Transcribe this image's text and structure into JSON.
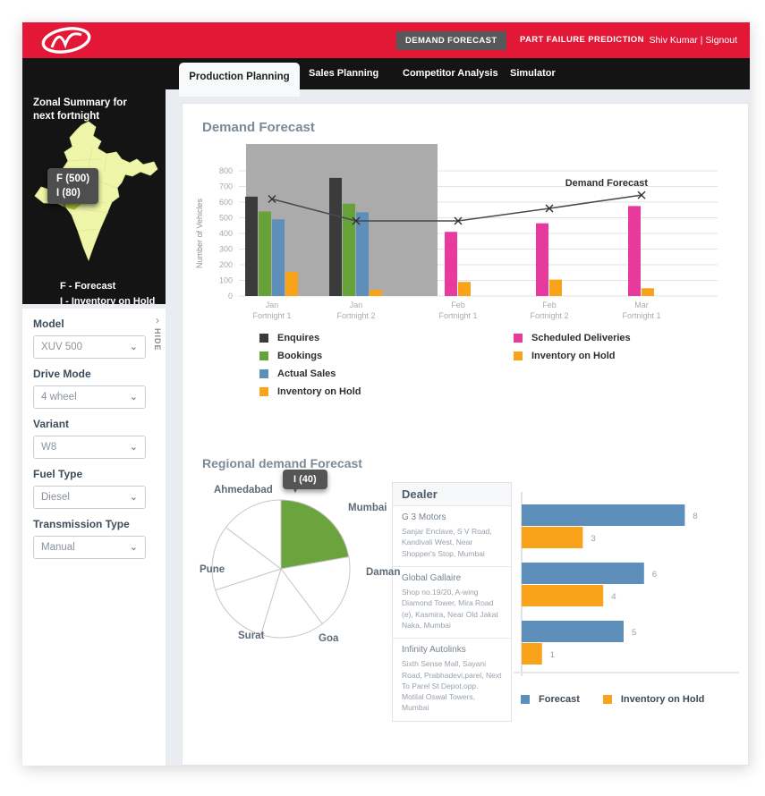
{
  "icons": {
    "chevron_down": "⌄",
    "chevron_right": "›"
  },
  "header": {
    "nav_buttons": [
      {
        "label": "DEMAND FORECAST",
        "active": true
      },
      {
        "label": "PART FAILURE PREDICTION",
        "active": false
      }
    ],
    "user": "Shiv Kumar",
    "separator": "|",
    "signout_label": "Signout",
    "brand_color": "#e31837"
  },
  "tabs": [
    {
      "label": "Production Planning",
      "active": true
    },
    {
      "label": "Sales Planning",
      "active": false
    },
    {
      "label": "Competitor Analysis",
      "active": false
    },
    {
      "label": "Simulator",
      "active": false
    }
  ],
  "sidebar": {
    "zonal_title": "Zonal Summary for next fortnight",
    "map_tooltip": {
      "line1": "F (500)",
      "line2": "I (80)"
    },
    "map_legend": {
      "line1": "F - Forecast",
      "line2": "I - Inventory on Hold"
    },
    "hide_label": "HIDE",
    "filters": [
      {
        "label": "Model",
        "value": "XUV 500"
      },
      {
        "label": "Drive Mode",
        "value": "4 wheel"
      },
      {
        "label": "Variant",
        "value": "W8"
      },
      {
        "label": "Fuel Type",
        "value": "Diesel"
      },
      {
        "label": "Transmission Type",
        "value": "Manual"
      }
    ]
  },
  "main": {
    "section1_title": "Demand Forecast",
    "section2_title": "Regional demand Forecast",
    "pie_tooltip": "I (40)",
    "dealer_panel": {
      "header": "Dealer",
      "dealers": [
        {
          "name": "G 3 Motors",
          "address": "Sanjar Enclave, S V Road, Kandivali West, Near Shopper's Stop, Mumbai"
        },
        {
          "name": "Global Gallaire",
          "address": "Shop no.19/20, A-wing Diamond Tower, Mira Road (e), Kasmira, Near Old Jakat Naka, Mumbai"
        },
        {
          "name": "Infinity Autolinks",
          "address": "Sixth Sense Mall, Sayani Road, Prabhadevi,parel, Next To Parel St Depot,opp. Motilal Oswal Towers, Mumbai"
        }
      ]
    }
  },
  "chart_data": [
    {
      "type": "bar",
      "title": "Demand Forecast",
      "xlabel": "",
      "ylabel": "Number of Vehicles",
      "ylim": [
        0,
        800
      ],
      "ytick_step": 100,
      "grid": true,
      "legend_position": "bottom",
      "categories": [
        "Jan Fortnight 1",
        "Jan Fortnight 2",
        "Feb Fortnight 1",
        "Feb Fortnight 2",
        "Mar Fortnight 1"
      ],
      "series": [
        {
          "name": "Enquires",
          "color": "#3b3b3b",
          "values": [
            635,
            755,
            null,
            null,
            null
          ]
        },
        {
          "name": "Bookings",
          "color": "#67a239",
          "values": [
            540,
            590,
            null,
            null,
            null
          ]
        },
        {
          "name": "Actual Sales",
          "color": "#5d8fba",
          "values": [
            490,
            535,
            null,
            null,
            null
          ]
        },
        {
          "name": "Scheduled Deliveries",
          "color": "#e83a9c",
          "values": [
            null,
            null,
            410,
            465,
            575
          ]
        },
        {
          "name": "Inventory on Hold",
          "color": "#f9a31a",
          "values": [
            155,
            40,
            90,
            105,
            50
          ]
        }
      ],
      "line_series": {
        "name": "Demand Forecast",
        "color": "#4a4a4a",
        "values": [
          620,
          480,
          480,
          560,
          645
        ]
      },
      "annotation": "Demand Forecast",
      "highlight_region": {
        "first_category": 0,
        "last_category": 1,
        "color": "#ababab"
      },
      "legend_left": [
        "Enquires",
        "Bookings",
        "Actual Sales",
        "Inventory on Hold"
      ],
      "legend_right": [
        "Scheduled Deliveries",
        "Inventory on Hold"
      ]
    },
    {
      "type": "pie",
      "title": "Regional demand Forecast",
      "value_unit": "degrees",
      "tooltip": "I (40)",
      "slices": [
        {
          "label": "Mumbai",
          "value": 80,
          "color": "#6ba43d",
          "highlight": true
        },
        {
          "label": "Daman",
          "value": 63,
          "color": "#ffffff"
        },
        {
          "label": "Goa",
          "value": 54,
          "color": "#ffffff"
        },
        {
          "label": "Surat",
          "value": 55,
          "color": "#ffffff"
        },
        {
          "label": "Pune",
          "value": 55,
          "color": "#ffffff"
        },
        {
          "label": "Ahmedabad",
          "value": 53,
          "color": "#ffffff"
        }
      ]
    },
    {
      "type": "bar",
      "orientation": "horizontal",
      "xlim": [
        0,
        9
      ],
      "data_labels": true,
      "legend_position": "bottom",
      "categories": [
        "G 3 Motors",
        "Global Gallaire",
        "Infinity Autolinks"
      ],
      "series": [
        {
          "name": "Forecast",
          "color": "#5d8fba",
          "values": [
            8,
            6,
            5
          ]
        },
        {
          "name": "Inventory on Hold",
          "color": "#f9a31a",
          "values": [
            3,
            4,
            1
          ]
        }
      ]
    }
  ]
}
